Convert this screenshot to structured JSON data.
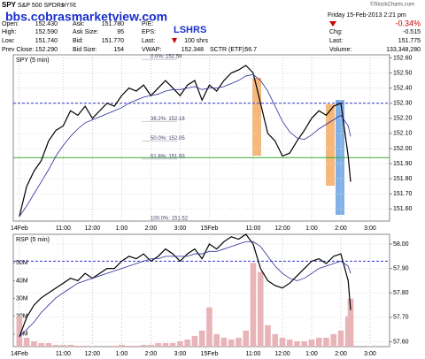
{
  "header": {
    "symbol": "SPY",
    "name": "S&P 500 SPDRs",
    "exchange": "NYSE",
    "watermark": "bbs.cobrasmarketview.com",
    "tag": "LSHRS",
    "date": "Friday 15-Feb-2013 2:21 pm",
    "credit": "©StockCharts.com",
    "change_pct": "-0.34%",
    "fields": [
      [
        "Open:",
        "152.430"
      ],
      [
        "High:",
        "152.590"
      ],
      [
        "Low:",
        "151.740"
      ],
      [
        "Prev Close:",
        "152.290"
      ],
      [
        "Ask:",
        "151.780"
      ],
      [
        "Ask Size:",
        "95"
      ],
      [
        "Bid:",
        "151.770"
      ],
      [
        "Bid Size:",
        "154"
      ],
      [
        "P/E:"
      ],
      [
        "EPS:"
      ],
      [
        "Last:",
        "100 shrs"
      ],
      [
        "VWAP:",
        "152.348"
      ],
      [
        "SCTR (ETF):",
        "56.7"
      ],
      [
        "Chg:",
        "-0.515"
      ],
      [
        "Last:",
        "151.775"
      ],
      [
        "Volume:",
        "133,348,280"
      ]
    ]
  },
  "chart_data": [
    {
      "type": "line",
      "title": "SPY (5 min)",
      "x": [
        0,
        3,
        6,
        9,
        12,
        15,
        18,
        21,
        24,
        27,
        30,
        33,
        36,
        39,
        42,
        45,
        48,
        51,
        54,
        57,
        60,
        63,
        66,
        69,
        72,
        75,
        78,
        81,
        84,
        87,
        90,
        93,
        96,
        99,
        102,
        105,
        108,
        111,
        114,
        117,
        120,
        123,
        126,
        129,
        132,
        135,
        136
      ],
      "series": [
        {
          "color": "#000000",
          "values": [
            151.55,
            151.75,
            151.85,
            151.92,
            152.05,
            152.12,
            152.15,
            152.25,
            152.22,
            152.28,
            152.2,
            152.25,
            152.3,
            152.28,
            152.35,
            152.4,
            152.38,
            152.42,
            152.35,
            152.4,
            152.45,
            152.4,
            152.35,
            152.42,
            152.45,
            152.32,
            152.42,
            152.38,
            152.45,
            152.5,
            152.52,
            152.55,
            152.5,
            152.3,
            152.1,
            152.05,
            151.95,
            151.97,
            152.05,
            152.12,
            152.2,
            152.25,
            152.22,
            152.28,
            152.3,
            151.95,
            151.78
          ]
        },
        {
          "color": "#2b2b9a",
          "values": [
            151.55,
            151.62,
            151.7,
            151.78,
            151.86,
            151.95,
            152.02,
            152.08,
            152.13,
            152.17,
            152.19,
            152.21,
            152.23,
            152.25,
            152.27,
            152.3,
            152.32,
            152.34,
            152.35,
            152.36,
            152.38,
            152.39,
            152.39,
            152.4,
            152.41,
            152.39,
            152.4,
            152.4,
            152.41,
            152.43,
            152.45,
            152.48,
            152.49,
            152.45,
            152.38,
            152.28,
            152.18,
            152.11,
            152.07,
            152.06,
            152.09,
            152.13,
            152.16,
            152.19,
            152.22,
            152.15,
            152.08
          ]
        }
      ],
      "annotations": [
        {
          "text": "0.0%: 152.59",
          "y": 152.59
        },
        {
          "text": "38.2%: 152.18",
          "y": 152.18
        },
        {
          "text": "50.0%: 152.05",
          "y": 152.05
        },
        {
          "text": "61.8%: 151.93",
          "y": 151.93
        },
        {
          "text": "100.0%: 151.52",
          "y": 151.52
        }
      ],
      "hlines": [
        {
          "y": 152.3,
          "color": "#3333cc",
          "dash": true
        },
        {
          "y": 151.94,
          "color": "#33aa33",
          "dash": false
        }
      ],
      "xlim": [
        -2.5,
        152
      ],
      "xticks": [
        {
          "value": 0,
          "label": "14Feb"
        },
        {
          "value": 18,
          "label": "11:00"
        },
        {
          "value": 30,
          "label": "12:00"
        },
        {
          "value": 42,
          "label": "1:00"
        },
        {
          "value": 54,
          "label": "2:00"
        },
        {
          "value": 66,
          "label": "3:00"
        },
        {
          "value": 78,
          "label": "15Feb"
        },
        {
          "value": 96,
          "label": "11:00"
        },
        {
          "value": 108,
          "label": "12:00"
        },
        {
          "value": 120,
          "label": "1:00"
        },
        {
          "value": 132,
          "label": "2:00"
        },
        {
          "value": 144,
          "label": "3:00"
        }
      ],
      "ylim": [
        151.52,
        152.62
      ],
      "yticks": [
        {
          "value": 151.6,
          "label": "151.60"
        },
        {
          "value": 151.7,
          "label": "151.70"
        },
        {
          "value": 151.8,
          "label": "151.80"
        },
        {
          "value": 151.9,
          "label": "151.90"
        },
        {
          "value": 152,
          "label": "152.00"
        },
        {
          "value": 152.1,
          "label": "152.10"
        },
        {
          "value": 152.2,
          "label": "152.20"
        },
        {
          "value": 152.3,
          "label": "152.30"
        },
        {
          "value": 152.4,
          "label": "152.40"
        },
        {
          "value": 152.5,
          "label": "152.50"
        },
        {
          "value": 152.6,
          "label": "152.60"
        }
      ],
      "grid": true
    },
    {
      "type": "line",
      "title": "RSP (5 min)",
      "x": [
        0,
        3,
        6,
        9,
        12,
        15,
        18,
        21,
        24,
        27,
        30,
        33,
        36,
        39,
        42,
        45,
        48,
        51,
        54,
        57,
        60,
        63,
        66,
        69,
        72,
        75,
        78,
        81,
        84,
        87,
        90,
        93,
        96,
        99,
        102,
        105,
        108,
        111,
        114,
        117,
        120,
        123,
        126,
        129,
        132,
        135,
        136
      ],
      "series": [
        {
          "type": "bar",
          "axis": "y2",
          "color": "#e8b4b8",
          "values": [
            20000000,
            8000000,
            6000000,
            5000000,
            5000000,
            4000000,
            4000000,
            4000000,
            3500000,
            3500000,
            3000000,
            3000000,
            3000000,
            3500000,
            4000000,
            3500000,
            3500000,
            4000000,
            4000000,
            5000000,
            5000000,
            5000000,
            6000000,
            7000000,
            9000000,
            12000000,
            25000000,
            10000000,
            8000000,
            7000000,
            8000000,
            12000000,
            50000000,
            45000000,
            15000000,
            10000000,
            8000000,
            7000000,
            6000000,
            6000000,
            7000000,
            8000000,
            8000000,
            10000000,
            12000000,
            20000000,
            30000000
          ]
        },
        {
          "color": "#000000",
          "values": [
            57.62,
            57.7,
            57.75,
            57.78,
            57.8,
            57.82,
            57.84,
            57.86,
            57.85,
            57.88,
            57.86,
            57.88,
            57.9,
            57.9,
            57.93,
            57.95,
            57.94,
            57.96,
            57.93,
            57.95,
            57.98,
            57.96,
            57.93,
            57.96,
            57.98,
            57.94,
            58.0,
            57.98,
            58.01,
            58.03,
            58.02,
            58.04,
            58.0,
            57.9,
            57.85,
            57.83,
            57.82,
            57.84,
            57.87,
            57.9,
            57.93,
            57.94,
            57.92,
            57.95,
            57.96,
            57.85,
            57.73
          ]
        },
        {
          "color": "#2b2b9a",
          "values": [
            57.62,
            57.65,
            57.68,
            57.72,
            57.75,
            57.78,
            57.8,
            57.82,
            57.84,
            57.85,
            57.86,
            57.87,
            57.88,
            57.89,
            57.9,
            57.91,
            57.92,
            57.93,
            57.94,
            57.94,
            57.95,
            57.95,
            57.95,
            57.95,
            57.96,
            57.96,
            57.97,
            57.97,
            57.98,
            57.99,
            58.0,
            58.01,
            58.01,
            57.99,
            57.95,
            57.91,
            57.88,
            57.86,
            57.85,
            57.86,
            57.88,
            57.9,
            57.91,
            57.92,
            57.93,
            57.91,
            57.88
          ]
        }
      ],
      "hlines": [
        {
          "y": 57.93,
          "color": "#3333cc",
          "dash": true
        }
      ],
      "xlim": [
        -2.5,
        152
      ],
      "xticks": [
        {
          "value": 0,
          "label": "14Feb"
        },
        {
          "value": 18,
          "label": "11:00"
        },
        {
          "value": 30,
          "label": "12:00"
        },
        {
          "value": 42,
          "label": "1:00"
        },
        {
          "value": 54,
          "label": "2:00"
        },
        {
          "value": 66,
          "label": "3:00"
        },
        {
          "value": 78,
          "label": "15Feb"
        },
        {
          "value": 96,
          "label": "11:00"
        },
        {
          "value": 108,
          "label": "12:00"
        },
        {
          "value": 120,
          "label": "1:00"
        },
        {
          "value": 132,
          "label": "2:00"
        },
        {
          "value": 144,
          "label": "3:00"
        }
      ],
      "ylim": [
        57.58,
        58.04
      ],
      "yticks": [
        {
          "value": 57.6,
          "label": "57.60"
        },
        {
          "value": 57.7,
          "label": "57.70"
        },
        {
          "value": 57.8,
          "label": "57.80"
        },
        {
          "value": 57.9,
          "label": "57.90"
        },
        {
          "value": 58,
          "label": "58.00"
        }
      ],
      "y2lim": [
        3000000,
        66000000
      ],
      "y2ticks": [
        {
          "value": 10000000,
          "label": "10M"
        },
        {
          "value": 20000000,
          "label": "20M"
        },
        {
          "value": 30000000,
          "label": "30M"
        },
        {
          "value": 40000000,
          "label": "40M"
        },
        {
          "value": 50000000,
          "label": "50M"
        }
      ],
      "grid": true
    }
  ]
}
